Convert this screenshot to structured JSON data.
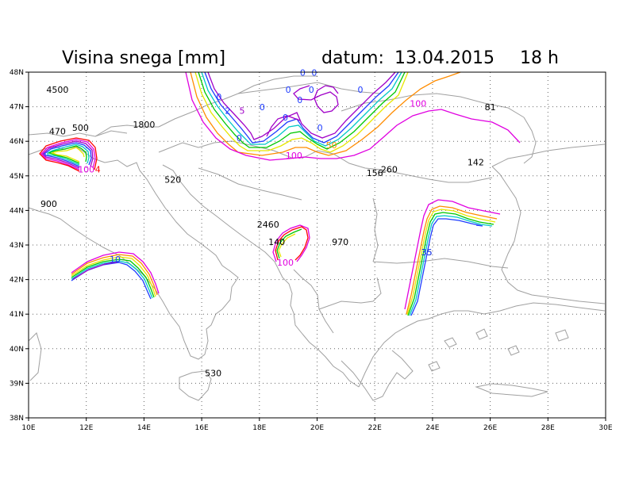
{
  "header": {
    "title": "Visina snega [mm]",
    "datum_label": "datum:",
    "date": "13.04.2015",
    "hour": "18 h"
  },
  "map": {
    "lon_range": [
      10,
      30
    ],
    "lat_range": [
      38,
      48
    ],
    "gridlines": true,
    "lon_ticks": [
      "10E",
      "12E",
      "14E",
      "16E",
      "18E",
      "20E",
      "22E",
      "24E",
      "26E",
      "28E",
      "30E"
    ],
    "lat_ticks": [
      "48N",
      "47N",
      "46N",
      "45N",
      "44N",
      "43N",
      "42N",
      "41N",
      "40N",
      "39N",
      "38N"
    ],
    "colors": {
      "purple": "#a000c8",
      "magenta": "#e000e0",
      "blue": "#1e3cff",
      "cyan": "#00c8c8",
      "green": "#00c800",
      "yellow": "#e6e600",
      "orange": "#ff8c00",
      "red": "#ff0000",
      "border": "#a0a0a0",
      "grid": "#666666"
    }
  },
  "stations": [
    {
      "value": "4500",
      "lon": 11.0,
      "lat": 47.4
    },
    {
      "value": "470",
      "lon": 11.0,
      "lat": 46.2
    },
    {
      "value": "500",
      "lon": 11.8,
      "lat": 46.3
    },
    {
      "value": "1800",
      "lon": 14.0,
      "lat": 46.4
    },
    {
      "value": "520",
      "lon": 15.0,
      "lat": 44.8
    },
    {
      "value": "900",
      "lon": 10.7,
      "lat": 44.1
    },
    {
      "value": "2460",
      "lon": 18.3,
      "lat": 43.5
    },
    {
      "value": "140",
      "lon": 18.6,
      "lat": 43.0
    },
    {
      "value": "970",
      "lon": 20.8,
      "lat": 43.0
    },
    {
      "value": "530",
      "lon": 16.4,
      "lat": 39.2
    },
    {
      "value": "156",
      "lon": 22.0,
      "lat": 45.0
    },
    {
      "value": "260",
      "lon": 22.5,
      "lat": 45.1
    },
    {
      "value": "142",
      "lon": 25.5,
      "lat": 45.3
    },
    {
      "value": "81",
      "lon": 26.0,
      "lat": 46.9
    },
    {
      "value": "35",
      "lon": 23.8,
      "lat": 42.7
    }
  ],
  "contour_labels": [
    {
      "text": "0",
      "color": "blue",
      "lon": 16.6,
      "lat": 47.2
    },
    {
      "text": "2",
      "color": "blue",
      "lon": 16.9,
      "lat": 46.8
    },
    {
      "text": "5",
      "color": "purple",
      "lon": 17.4,
      "lat": 46.8
    },
    {
      "text": "0",
      "color": "blue",
      "lon": 18.1,
      "lat": 46.9
    },
    {
      "text": "0",
      "color": "blue",
      "lon": 18.9,
      "lat": 46.6
    },
    {
      "text": "0",
      "color": "blue",
      "lon": 17.3,
      "lat": 46.0
    },
    {
      "text": "0",
      "color": "blue",
      "lon": 19.0,
      "lat": 47.4
    },
    {
      "text": "0",
      "color": "blue",
      "lon": 19.5,
      "lat": 47.9
    },
    {
      "text": "0",
      "color": "blue",
      "lon": 19.9,
      "lat": 47.9
    },
    {
      "text": "0",
      "color": "blue",
      "lon": 19.8,
      "lat": 47.4
    },
    {
      "text": "0",
      "color": "blue",
      "lon": 19.4,
      "lat": 47.1
    },
    {
      "text": "0",
      "color": "blue",
      "lon": 20.1,
      "lat": 46.3
    },
    {
      "text": "0",
      "color": "blue",
      "lon": 21.5,
      "lat": 47.4
    },
    {
      "text": "50",
      "color": "orange",
      "lon": 20.5,
      "lat": 45.8
    },
    {
      "text": "100",
      "color": "magenta",
      "lon": 19.2,
      "lat": 45.5
    },
    {
      "text": "100",
      "color": "magenta",
      "lon": 23.5,
      "lat": 47.0
    },
    {
      "text": "100",
      "color": "magenta",
      "lon": 12.0,
      "lat": 45.1
    },
    {
      "text": "4",
      "color": "red",
      "lon": 12.4,
      "lat": 45.1
    },
    {
      "text": "10",
      "color": "blue",
      "lon": 13.0,
      "lat": 42.5
    },
    {
      "text": "100",
      "color": "magenta",
      "lon": 18.9,
      "lat": 42.4
    },
    {
      "text": "35",
      "color": "blue",
      "lon": 23.8,
      "lat": 42.7
    }
  ]
}
